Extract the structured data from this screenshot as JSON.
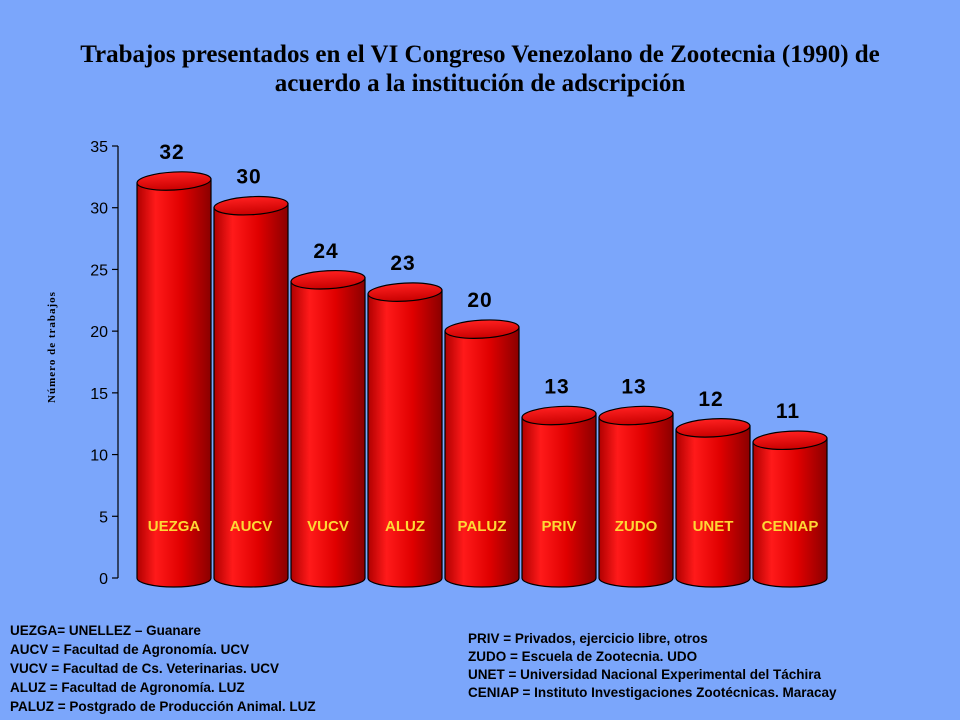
{
  "chart_data": {
    "type": "bar",
    "title_lines": [
      "Trabajos presentados en el VI Congreso Venezolano de Zootecnia (1990) de",
      "acuerdo a la institución de adscripción"
    ],
    "ylabel": "Número de trabajos",
    "categories": [
      "UEZGA",
      "AUCV",
      "VUCV",
      "ALUZ",
      "PALUZ",
      "PRIV",
      "ZUDO",
      "UNET",
      "CENIAP"
    ],
    "values": [
      32,
      30,
      24,
      23,
      20,
      13,
      13,
      12,
      11
    ],
    "value_labels": [
      "32",
      "30",
      "24",
      "23",
      "20",
      "13",
      "13",
      "12",
      "11"
    ],
    "ylim": [
      0,
      35
    ],
    "yticks": [
      0,
      5,
      10,
      15,
      20,
      25,
      30,
      35
    ],
    "ytick_labels": [
      "0",
      "5",
      "10",
      "15",
      "20",
      "25",
      "30",
      "35"
    ],
    "grid": false,
    "bar_style": "cylinder",
    "bar_color": "#e00000",
    "category_label_color": "#fdd835"
  },
  "legend": {
    "left": [
      "UEZGA= UNELLEZ – Guanare",
      "AUCV = Facultad de Agronomía. UCV",
      "VUCV = Facultad de Cs. Veterinarias. UCV",
      "ALUZ = Facultad de Agronomía.  LUZ",
      "PALUZ = Postgrado de Producción  Animal. LUZ"
    ],
    "right": [
      "PRIV = Privados, ejercicio libre, otros",
      "ZUDO = Escuela de Zootecnia. UDO",
      "UNET = Universidad Nacional Experimental del Táchira",
      "CENIAP = Instituto Investigaciones Zootécnicas.  Maracay"
    ]
  }
}
